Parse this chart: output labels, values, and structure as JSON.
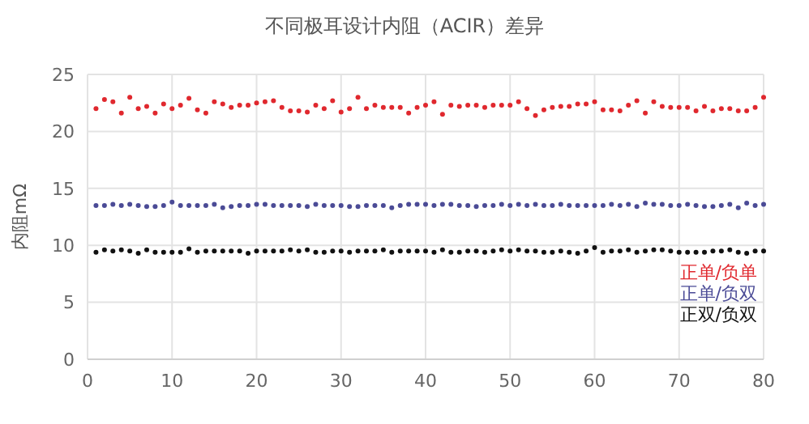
{
  "chart_data": {
    "type": "scatter",
    "title": "不同极耳设计内阻（ACIR）差异",
    "ylabel": "内阻mΩ",
    "x": [
      1,
      2,
      3,
      4,
      5,
      6,
      7,
      8,
      9,
      10,
      11,
      12,
      13,
      14,
      15,
      16,
      17,
      18,
      19,
      20,
      21,
      22,
      23,
      24,
      25,
      26,
      27,
      28,
      29,
      30,
      31,
      32,
      33,
      34,
      35,
      36,
      37,
      38,
      39,
      40,
      41,
      42,
      43,
      44,
      45,
      46,
      47,
      48,
      49,
      50,
      51,
      52,
      53,
      54,
      55,
      56,
      57,
      58,
      59,
      60,
      61,
      62,
      63,
      64,
      65,
      66,
      67,
      68,
      69,
      70,
      71,
      72,
      73,
      74,
      75,
      76,
      77,
      78,
      79,
      80
    ],
    "xlim": [
      0,
      80
    ],
    "xticks": [
      0,
      10,
      20,
      30,
      40,
      50,
      60,
      70,
      80
    ],
    "ylim": [
      0,
      25
    ],
    "yticks": [
      0,
      5,
      10,
      15,
      20,
      25
    ],
    "grid": true,
    "legend": "bottom right",
    "marker": "circle",
    "series": [
      {
        "name": "正单/负单",
        "color": "#e0282e",
        "values": [
          22.0,
          22.8,
          22.6,
          21.6,
          23.0,
          22.0,
          22.2,
          21.6,
          22.4,
          22.0,
          22.3,
          22.9,
          21.9,
          21.6,
          22.6,
          22.4,
          22.1,
          22.3,
          22.3,
          22.5,
          22.6,
          22.7,
          22.1,
          21.8,
          21.8,
          21.7,
          22.3,
          22.0,
          22.7,
          21.7,
          22.0,
          23.0,
          22.0,
          22.3,
          22.1,
          22.1,
          22.1,
          21.6,
          22.1,
          22.3,
          22.6,
          21.5,
          22.3,
          22.2,
          22.3,
          22.3,
          22.1,
          22.3,
          22.3,
          22.3,
          22.6,
          22.0,
          21.4,
          21.9,
          22.1,
          22.2,
          22.2,
          22.4,
          22.4,
          22.6,
          21.9,
          21.9,
          21.8,
          22.3,
          22.7,
          21.6,
          22.6,
          22.2,
          22.1,
          22.1,
          22.1,
          21.8,
          22.2,
          21.8,
          22.0,
          22.0,
          21.8,
          21.8,
          22.1,
          23.0
        ]
      },
      {
        "name": "正单/负双",
        "color": "#4b4b96",
        "values": [
          13.5,
          13.5,
          13.6,
          13.5,
          13.6,
          13.5,
          13.4,
          13.4,
          13.5,
          13.8,
          13.5,
          13.5,
          13.5,
          13.5,
          13.6,
          13.3,
          13.4,
          13.5,
          13.5,
          13.6,
          13.6,
          13.5,
          13.5,
          13.5,
          13.5,
          13.4,
          13.6,
          13.5,
          13.5,
          13.5,
          13.4,
          13.4,
          13.5,
          13.5,
          13.5,
          13.3,
          13.5,
          13.6,
          13.6,
          13.6,
          13.5,
          13.6,
          13.6,
          13.5,
          13.5,
          13.4,
          13.5,
          13.5,
          13.6,
          13.5,
          13.6,
          13.5,
          13.6,
          13.5,
          13.5,
          13.6,
          13.5,
          13.5,
          13.5,
          13.5,
          13.5,
          13.6,
          13.5,
          13.6,
          13.4,
          13.7,
          13.6,
          13.6,
          13.5,
          13.5,
          13.6,
          13.5,
          13.4,
          13.4,
          13.5,
          13.6,
          13.3,
          13.7,
          13.5,
          13.6
        ]
      },
      {
        "name": "正双/负双",
        "color": "#111111",
        "values": [
          9.4,
          9.6,
          9.5,
          9.6,
          9.5,
          9.3,
          9.6,
          9.4,
          9.4,
          9.4,
          9.4,
          9.7,
          9.4,
          9.5,
          9.5,
          9.5,
          9.5,
          9.5,
          9.3,
          9.5,
          9.5,
          9.5,
          9.5,
          9.6,
          9.5,
          9.6,
          9.4,
          9.4,
          9.5,
          9.5,
          9.4,
          9.5,
          9.5,
          9.5,
          9.6,
          9.4,
          9.5,
          9.5,
          9.5,
          9.5,
          9.4,
          9.6,
          9.4,
          9.4,
          9.5,
          9.5,
          9.4,
          9.5,
          9.6,
          9.5,
          9.6,
          9.5,
          9.5,
          9.4,
          9.4,
          9.5,
          9.4,
          9.3,
          9.5,
          9.8,
          9.4,
          9.5,
          9.5,
          9.6,
          9.4,
          9.5,
          9.6,
          9.6,
          9.5,
          9.4,
          9.4,
          9.4,
          9.4,
          9.5,
          9.5,
          9.6,
          9.4,
          9.3,
          9.5,
          9.5
        ]
      }
    ]
  }
}
